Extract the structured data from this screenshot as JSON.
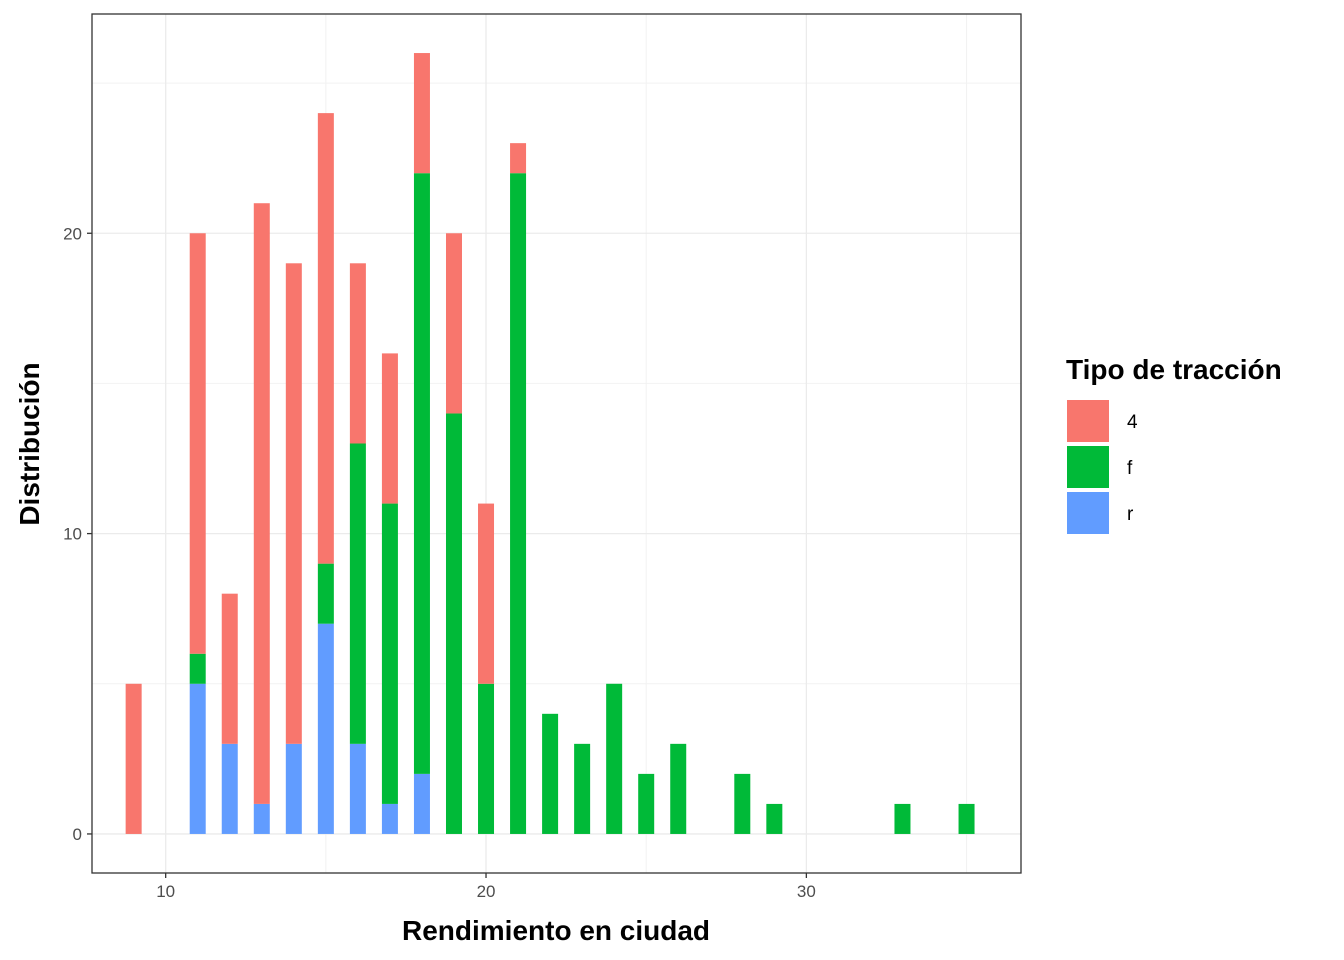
{
  "chart_data": {
    "type": "bar",
    "stacked": true,
    "xlabel": "Rendimiento en ciudad",
    "ylabel": "Distribución",
    "xlim": [
      7.7,
      36.7
    ],
    "ylim": [
      -1.3,
      27.3
    ],
    "x_ticks": [
      10,
      20,
      30
    ],
    "y_ticks": [
      0,
      10,
      20
    ],
    "x_minor": [
      15,
      25,
      35
    ],
    "y_minor": [
      5,
      15,
      25
    ],
    "grid": true,
    "legend": {
      "title": "Tipo de tracción",
      "position": "right"
    },
    "x": [
      9,
      11,
      12,
      13,
      14,
      15,
      16,
      17,
      18,
      19,
      20,
      21,
      22,
      23,
      24,
      25,
      26,
      28,
      29,
      33,
      35
    ],
    "series": [
      {
        "name": "r",
        "color": "#619CFF",
        "values": [
          0,
          5,
          3,
          1,
          3,
          7,
          3,
          1,
          2,
          0,
          0,
          0,
          0,
          0,
          0,
          0,
          0,
          0,
          0,
          0,
          0
        ]
      },
      {
        "name": "f",
        "color": "#00BA38",
        "values": [
          0,
          1,
          0,
          0,
          0,
          2,
          10,
          10,
          20,
          14,
          5,
          22,
          4,
          3,
          5,
          2,
          3,
          2,
          1,
          1,
          1
        ]
      },
      {
        "name": "4",
        "color": "#F8766D",
        "values": [
          5,
          14,
          5,
          20,
          16,
          15,
          6,
          5,
          4,
          6,
          6,
          1,
          0,
          0,
          0,
          0,
          0,
          0,
          0,
          0,
          0
        ]
      }
    ],
    "legend_order": [
      "4",
      "f",
      "r"
    ]
  }
}
